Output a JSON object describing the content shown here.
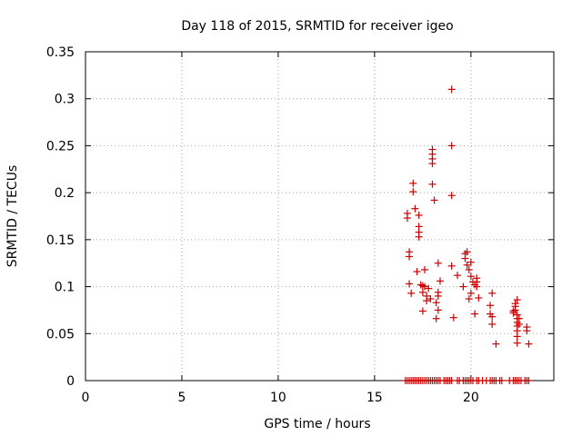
{
  "chart_data": {
    "type": "scatter",
    "title": "Day 118 of 2015, SRMTID for receiver igeo",
    "xlabel": "GPS time / hours",
    "ylabel": "SRMTID / TECUs",
    "xlim": [
      0,
      24.3
    ],
    "ylim": [
      0,
      0.35
    ],
    "xticks": [
      0,
      5,
      10,
      15,
      20
    ],
    "xtick_labels": [
      "0",
      "5",
      "10",
      "15",
      "20"
    ],
    "yticks": [
      0,
      0.05,
      0.1,
      0.15,
      0.2,
      0.25,
      0.3,
      0.35
    ],
    "ytick_labels": [
      "0",
      "0.05",
      "0.1",
      "0.15",
      "0.2",
      "0.25",
      "0.3",
      "0.35"
    ],
    "grid": true,
    "marker": "+",
    "color": "#cc0000",
    "series": [
      {
        "name": "SRMTID",
        "points": [
          [
            16.7,
            0.178
          ],
          [
            16.7,
            0.173
          ],
          [
            16.8,
            0.137
          ],
          [
            16.8,
            0.132
          ],
          [
            16.8,
            0.103
          ],
          [
            16.9,
            0.093
          ],
          [
            17.0,
            0.21
          ],
          [
            17.0,
            0.201
          ],
          [
            17.1,
            0.183
          ],
          [
            17.2,
            0.116
          ],
          [
            17.3,
            0.176
          ],
          [
            17.3,
            0.164
          ],
          [
            17.3,
            0.158
          ],
          [
            17.3,
            0.153
          ],
          [
            17.4,
            0.102
          ],
          [
            17.5,
            0.101
          ],
          [
            17.5,
            0.074
          ],
          [
            17.5,
            0.094
          ],
          [
            17.6,
            0.1
          ],
          [
            17.6,
            0.118
          ],
          [
            17.7,
            0.09
          ],
          [
            17.7,
            0.085
          ],
          [
            17.8,
            0.098
          ],
          [
            17.9,
            0.087
          ],
          [
            18.0,
            0.246
          ],
          [
            18.0,
            0.241
          ],
          [
            18.0,
            0.236
          ],
          [
            18.0,
            0.231
          ],
          [
            18.0,
            0.209
          ],
          [
            18.1,
            0.192
          ],
          [
            18.2,
            0.083
          ],
          [
            18.2,
            0.066
          ],
          [
            18.3,
            0.075
          ],
          [
            18.3,
            0.09
          ],
          [
            18.3,
            0.094
          ],
          [
            18.3,
            0.125
          ],
          [
            18.4,
            0.106
          ],
          [
            19.0,
            0.31
          ],
          [
            19.0,
            0.25
          ],
          [
            19.0,
            0.197
          ],
          [
            19.0,
            0.122
          ],
          [
            19.1,
            0.067
          ],
          [
            19.3,
            0.112
          ],
          [
            19.6,
            0.1
          ],
          [
            19.7,
            0.135
          ],
          [
            19.7,
            0.13
          ],
          [
            19.8,
            0.137
          ],
          [
            19.8,
            0.123
          ],
          [
            19.9,
            0.118
          ],
          [
            19.9,
            0.087
          ],
          [
            20.0,
            0.126
          ],
          [
            20.0,
            0.111
          ],
          [
            20.0,
            0.093
          ],
          [
            20.1,
            0.105
          ],
          [
            20.2,
            0.102
          ],
          [
            20.2,
            0.071
          ],
          [
            20.3,
            0.109
          ],
          [
            20.3,
            0.105
          ],
          [
            20.3,
            0.1
          ],
          [
            20.4,
            0.088
          ],
          [
            21.0,
            0.08
          ],
          [
            21.0,
            0.071
          ],
          [
            21.1,
            0.068
          ],
          [
            21.1,
            0.06
          ],
          [
            21.1,
            0.093
          ],
          [
            21.3,
            0.039
          ],
          [
            22.2,
            0.074
          ],
          [
            22.2,
            0.072
          ],
          [
            22.3,
            0.082
          ],
          [
            22.3,
            0.079
          ],
          [
            22.3,
            0.075
          ],
          [
            22.4,
            0.086
          ],
          [
            22.4,
            0.07
          ],
          [
            22.4,
            0.066
          ],
          [
            22.4,
            0.062
          ],
          [
            22.4,
            0.058
          ],
          [
            22.4,
            0.053
          ],
          [
            22.4,
            0.047
          ],
          [
            22.4,
            0.04
          ],
          [
            22.5,
            0.066
          ],
          [
            22.5,
            0.06
          ],
          [
            22.9,
            0.057
          ],
          [
            22.9,
            0.053
          ],
          [
            23.0,
            0.039
          ],
          [
            16.6,
            0
          ],
          [
            16.7,
            0
          ],
          [
            16.8,
            0
          ],
          [
            16.9,
            0
          ],
          [
            17.0,
            0
          ],
          [
            17.1,
            0
          ],
          [
            17.2,
            0
          ],
          [
            17.3,
            0
          ],
          [
            17.4,
            0
          ],
          [
            17.5,
            0
          ],
          [
            17.6,
            0
          ],
          [
            17.7,
            0
          ],
          [
            17.8,
            0
          ],
          [
            17.9,
            0
          ],
          [
            18.0,
            0
          ],
          [
            18.1,
            0
          ],
          [
            18.2,
            0
          ],
          [
            18.3,
            0
          ],
          [
            18.4,
            0
          ],
          [
            18.6,
            0
          ],
          [
            18.7,
            0
          ],
          [
            18.8,
            0
          ],
          [
            18.9,
            0
          ],
          [
            19.0,
            0
          ],
          [
            19.3,
            0
          ],
          [
            19.4,
            0
          ],
          [
            19.6,
            0
          ],
          [
            19.7,
            0
          ],
          [
            19.8,
            0
          ],
          [
            19.9,
            0
          ],
          [
            20.0,
            0
          ],
          [
            20.1,
            0
          ],
          [
            20.3,
            0
          ],
          [
            20.4,
            0
          ],
          [
            20.6,
            0
          ],
          [
            20.8,
            0
          ],
          [
            21.0,
            0
          ],
          [
            21.1,
            0
          ],
          [
            21.2,
            0
          ],
          [
            21.3,
            0
          ],
          [
            21.5,
            0
          ],
          [
            21.6,
            0
          ],
          [
            22.0,
            0
          ],
          [
            22.2,
            0
          ],
          [
            22.3,
            0
          ],
          [
            22.4,
            0
          ],
          [
            22.5,
            0
          ],
          [
            22.6,
            0
          ],
          [
            22.8,
            0
          ],
          [
            22.9,
            0
          ],
          [
            23.0,
            0
          ]
        ]
      }
    ]
  }
}
